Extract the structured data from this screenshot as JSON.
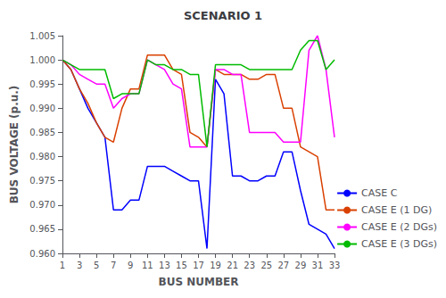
{
  "chart_data": {
    "type": "line",
    "title": "SCENARIO 1",
    "x_label": "BUS NUMBER",
    "y_label": "BUS VOLTAGE (p.u.)",
    "x": [
      1,
      2,
      3,
      4,
      5,
      6,
      7,
      8,
      9,
      10,
      11,
      12,
      13,
      14,
      15,
      16,
      17,
      18,
      19,
      20,
      21,
      22,
      23,
      24,
      25,
      26,
      27,
      28,
      29,
      30,
      31,
      32,
      33
    ],
    "series": [
      {
        "name": "CASE C",
        "color": "#0000FF",
        "values": [
          1.0,
          0.998,
          0.994,
          0.99,
          0.987,
          0.984,
          0.969,
          0.969,
          0.971,
          0.971,
          0.978,
          0.978,
          0.978,
          0.977,
          0.976,
          0.975,
          0.975,
          0.961,
          0.996,
          0.993,
          0.976,
          0.976,
          0.975,
          0.975,
          0.976,
          0.976,
          0.981,
          0.981,
          0.973,
          0.966,
          0.965,
          0.964,
          0.961
        ]
      },
      {
        "name": "CASE E (1 DG)",
        "color": "#D94000",
        "values": [
          1.0,
          0.998,
          0.994,
          0.991,
          0.987,
          0.984,
          0.983,
          0.99,
          0.994,
          0.994,
          1.001,
          1.001,
          1.001,
          0.998,
          0.997,
          0.985,
          0.984,
          0.982,
          0.998,
          0.997,
          0.997,
          0.997,
          0.996,
          0.996,
          0.997,
          0.997,
          0.99,
          0.99,
          0.982,
          0.981,
          0.98,
          0.969,
          0.969
        ]
      },
      {
        "name": "CASE E (2 DGs)",
        "color": "#FF00FF",
        "values": [
          1.0,
          0.999,
          0.997,
          0.996,
          0.995,
          0.995,
          0.99,
          0.992,
          0.993,
          0.993,
          1.0,
          0.999,
          0.998,
          0.995,
          0.994,
          0.982,
          0.982,
          0.982,
          0.998,
          0.998,
          0.997,
          0.997,
          0.985,
          0.985,
          0.985,
          0.985,
          0.983,
          0.983,
          0.983,
          1.002,
          1.005,
          0.998,
          0.984
        ]
      },
      {
        "name": "CASE E (3 DGs)",
        "color": "#00BB00",
        "values": [
          1.0,
          0.999,
          0.998,
          0.998,
          0.998,
          0.998,
          0.992,
          0.993,
          0.993,
          0.993,
          1.0,
          0.999,
          0.999,
          0.998,
          0.998,
          0.997,
          0.997,
          0.982,
          0.999,
          0.999,
          0.999,
          0.999,
          0.998,
          0.998,
          0.998,
          0.998,
          0.998,
          0.998,
          1.002,
          1.004,
          1.004,
          0.998,
          1.0
        ]
      }
    ],
    "xlim": [
      1,
      33
    ],
    "ylim": [
      0.96,
      1.005
    ],
    "xticks": [
      1,
      3,
      5,
      7,
      9,
      11,
      13,
      15,
      17,
      19,
      21,
      23,
      25,
      27,
      29,
      31,
      33
    ],
    "yticks": [
      {
        "value": 0.96,
        "label": "0.960"
      },
      0.965,
      {
        "value": 0.97,
        "label": "0.970"
      },
      0.975,
      {
        "value": 0.98,
        "label": "0.980"
      },
      0.985,
      {
        "value": 0.99,
        "label": "0.990"
      },
      0.995,
      {
        "value": 1.0,
        "label": "1.000"
      },
      1.005
    ],
    "grid": false,
    "legend": "lower right"
  }
}
